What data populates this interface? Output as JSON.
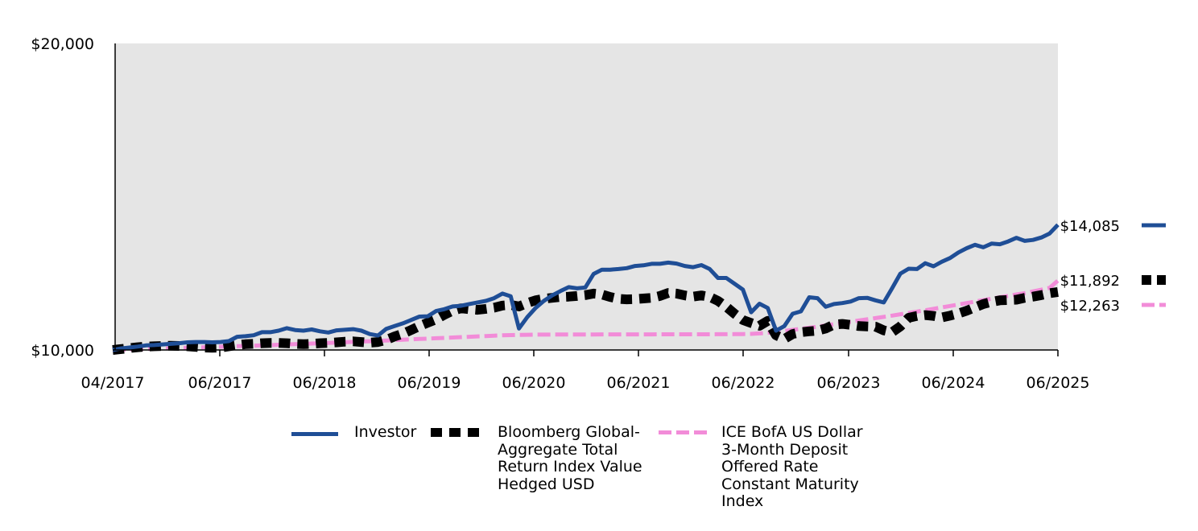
{
  "chart_data": {
    "type": "line",
    "y_ticks": [
      "$10,000",
      "$20,000"
    ],
    "ylim": [
      10000,
      20000
    ],
    "x_ticks": [
      "04/2017",
      "06/2017",
      "06/2018",
      "06/2019",
      "06/2020",
      "06/2021",
      "06/2022",
      "06/2023",
      "06/2024",
      "06/2025"
    ],
    "grid": false,
    "plot_background": "#e5e5e5",
    "series": [
      {
        "name": "Investor",
        "color": "#1f4e96",
        "style": "solid",
        "end_label": "$14,085",
        "values": [
          10000,
          10050,
          10080,
          10110,
          10150,
          10160,
          10180,
          10200,
          10220,
          10250,
          10260,
          10260,
          10250,
          10260,
          10290,
          10430,
          10450,
          10480,
          10580,
          10580,
          10630,
          10710,
          10650,
          10630,
          10670,
          10610,
          10570,
          10640,
          10660,
          10680,
          10630,
          10520,
          10470,
          10690,
          10780,
          10870,
          10980,
          11090,
          11100,
          11270,
          11330,
          11420,
          11440,
          11500,
          11550,
          11600,
          11690,
          11840,
          11750,
          10700,
          11070,
          11370,
          11600,
          11780,
          11920,
          12050,
          12010,
          12040,
          12480,
          12620,
          12620,
          12640,
          12670,
          12740,
          12760,
          12810,
          12810,
          12850,
          12820,
          12740,
          12700,
          12770,
          12640,
          12350,
          12350,
          12160,
          11970,
          11230,
          11510,
          11370,
          10630,
          10780,
          11180,
          11260,
          11720,
          11690,
          11410,
          11500,
          11530,
          11580,
          11690,
          11700,
          11620,
          11550,
          12010,
          12490,
          12650,
          12640,
          12830,
          12730,
          12880,
          13000,
          13180,
          13320,
          13430,
          13350,
          13470,
          13450,
          13540,
          13660,
          13560,
          13590,
          13670,
          13800,
          14085
        ]
      },
      {
        "name": "Bloomberg Global-Aggregate Total Return Index Value Hedged USD",
        "color": "#000000",
        "style": "dotted",
        "end_label": "$11,892",
        "values": [
          10000,
          10030,
          10060,
          10090,
          10110,
          10120,
          10130,
          10140,
          10130,
          10120,
          10100,
          10080,
          10070,
          10080,
          10120,
          10160,
          10190,
          10200,
          10220,
          10230,
          10230,
          10220,
          10200,
          10190,
          10200,
          10220,
          10230,
          10250,
          10270,
          10280,
          10260,
          10240,
          10260,
          10330,
          10440,
          10530,
          10650,
          10780,
          10890,
          11000,
          11150,
          11280,
          11360,
          11330,
          11310,
          11340,
          11380,
          11450,
          11470,
          11420,
          11530,
          11620,
          11670,
          11700,
          11730,
          11740,
          11760,
          11790,
          11840,
          11810,
          11730,
          11670,
          11650,
          11660,
          11680,
          11700,
          11760,
          11860,
          11840,
          11780,
          11740,
          11780,
          11730,
          11600,
          11410,
          11180,
          10980,
          10880,
          10790,
          10950,
          10480,
          10360,
          10520,
          10580,
          10610,
          10630,
          10700,
          10830,
          10850,
          10820,
          10780,
          10770,
          10760,
          10640,
          10580,
          10770,
          11050,
          11110,
          11140,
          11110,
          11060,
          11120,
          11190,
          11280,
          11390,
          11500,
          11570,
          11620,
          11630,
          11640,
          11700,
          11740,
          11790,
          11850,
          11892
        ]
      },
      {
        "name": "ICE BofA US Dollar 3-Month Deposit Offered Rate Constant Maturity Index",
        "color": "#f28cd8",
        "style": "dashed",
        "end_label": "$12,263",
        "values": [
          10000,
          10008,
          10016,
          10024,
          10032,
          10040,
          10048,
          10056,
          10064,
          10072,
          10080,
          10088,
          10096,
          10105,
          10114,
          10123,
          10132,
          10141,
          10150,
          10160,
          10170,
          10180,
          10190,
          10200,
          10210,
          10220,
          10231,
          10242,
          10253,
          10264,
          10275,
          10287,
          10299,
          10311,
          10323,
          10335,
          10347,
          10359,
          10371,
          10383,
          10395,
          10407,
          10419,
          10431,
          10443,
          10455,
          10466,
          10477,
          10486,
          10493,
          10497,
          10500,
          10502,
          10503,
          10504,
          10505,
          10506,
          10507,
          10507,
          10508,
          10508,
          10509,
          10509,
          10510,
          10510,
          10510,
          10511,
          10511,
          10511,
          10512,
          10512,
          10513,
          10513,
          10514,
          10515,
          10517,
          10520,
          10525,
          10540,
          10560,
          10590,
          10620,
          10655,
          10690,
          10725,
          10762,
          10800,
          10840,
          10880,
          10920,
          10960,
          11000,
          11040,
          11080,
          11122,
          11165,
          11208,
          11252,
          11297,
          11342,
          11388,
          11435,
          11482,
          11530,
          11578,
          11625,
          11672,
          11718,
          11764,
          11810,
          11855,
          11910,
          11965,
          12025,
          12263
        ]
      }
    ]
  }
}
